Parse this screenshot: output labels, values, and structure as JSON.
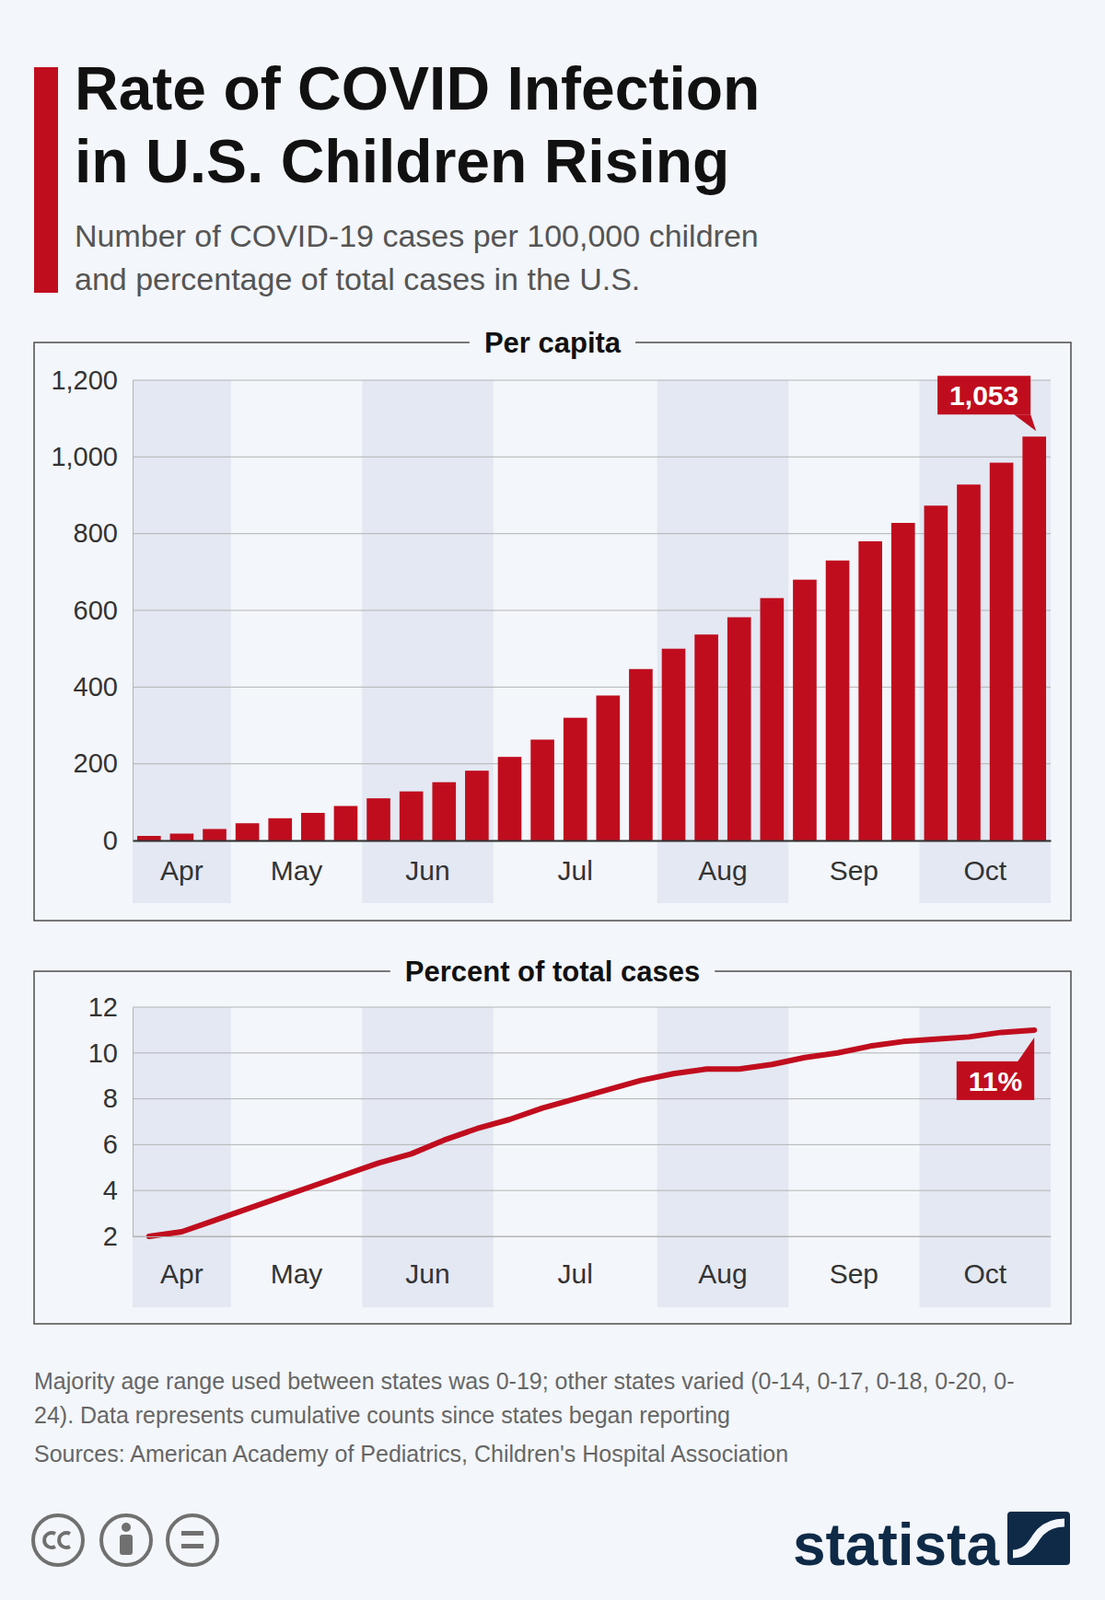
{
  "header": {
    "title": "Rate of COVID Infection in U.S. Children Rising",
    "subtitle": "Number of COVID-19 cases per 100,000 children and percentage of total cases in the U.S."
  },
  "chart_data": [
    {
      "type": "bar",
      "title": "Per capita",
      "categories": [
        "Apr",
        null,
        null,
        "May",
        null,
        null,
        null,
        "Jun",
        null,
        null,
        null,
        "Jul",
        null,
        null,
        null,
        null,
        "Aug",
        null,
        null,
        null,
        "Sep",
        null,
        null,
        null,
        "Oct",
        null,
        null,
        null
      ],
      "values": [
        12,
        18,
        30,
        45,
        58,
        72,
        90,
        110,
        128,
        152,
        182,
        218,
        263,
        320,
        378,
        447,
        500,
        537,
        582,
        632,
        680,
        730,
        780,
        828,
        873,
        928,
        985,
        1053
      ],
      "value_labels": [
        null,
        null,
        null,
        null,
        null,
        null,
        null,
        null,
        null,
        null,
        null,
        null,
        null,
        null,
        null,
        null,
        null,
        null,
        null,
        null,
        null,
        null,
        null,
        null,
        null,
        null,
        null,
        "1,053"
      ],
      "data_labels": true,
      "color": "#c00d1e",
      "ylim": [
        0,
        1200
      ],
      "yticks": [
        0,
        200,
        400,
        600,
        800,
        {
          "value": 1000,
          "label": "1,000"
        },
        {
          "value": 1200,
          "label": "1,200"
        }
      ],
      "grid": true
    },
    {
      "type": "line",
      "title": "Percent of total cases",
      "categories": [
        "Apr",
        null,
        null,
        "May",
        null,
        null,
        null,
        "Jun",
        null,
        null,
        null,
        "Jul",
        null,
        null,
        null,
        null,
        "Aug",
        null,
        null,
        null,
        "Sep",
        null,
        null,
        null,
        "Oct",
        null,
        null,
        null
      ],
      "values": [
        2,
        2.2,
        2.7,
        3.2,
        3.7,
        4.2,
        4.7,
        5.2,
        5.6,
        6.2,
        6.7,
        7.1,
        7.6,
        8,
        8.4,
        8.8,
        9.1,
        9.3,
        9.3,
        9.5,
        9.8,
        10,
        10.3,
        10.5,
        10.6,
        10.7,
        10.9,
        11
      ],
      "value_labels": [
        null,
        null,
        null,
        null,
        null,
        null,
        null,
        null,
        null,
        null,
        null,
        null,
        null,
        null,
        null,
        null,
        null,
        null,
        null,
        null,
        null,
        null,
        null,
        null,
        null,
        null,
        null,
        "11%"
      ],
      "data_labels": true,
      "color": "#c00d1e",
      "ylim": [
        2,
        12
      ],
      "yticks": [
        2,
        4,
        6,
        8,
        10,
        12
      ],
      "grid": true
    }
  ],
  "footer": {
    "note": "Majority age range used between states was 0-19; other states varied (0-14, 0-17, 0-18, 0-20, 0-24). Data represents cumulative counts since states began reporting",
    "source": "Sources: American Academy of Pediatrics, Children's Hospital Association",
    "brand": "statista"
  }
}
